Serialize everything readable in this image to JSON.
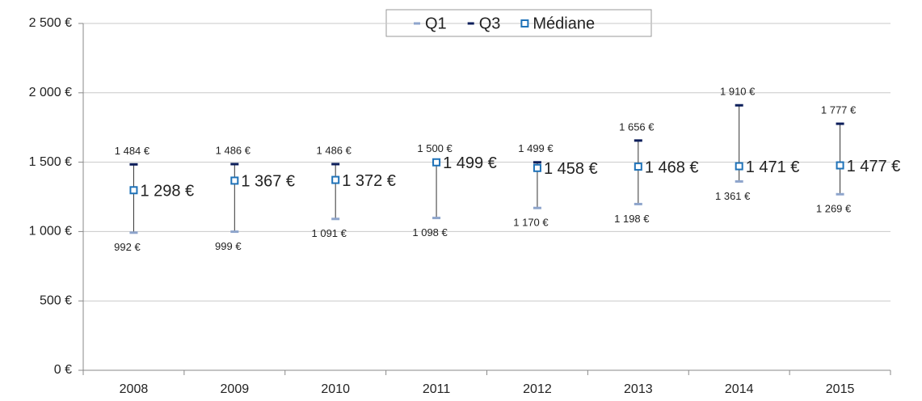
{
  "chart_data": {
    "type": "range",
    "categories": [
      "2008",
      "2009",
      "2010",
      "2011",
      "2012",
      "2013",
      "2014",
      "2015"
    ],
    "series": [
      {
        "name": "Q1",
        "color": "#8ea5cc",
        "values": [
          992,
          999,
          1091,
          1098,
          1170,
          1198,
          1361,
          1269
        ],
        "value_labels": [
          "992 €",
          "999 €",
          "1 091 €",
          "1 098 €",
          "1 170 €",
          "1 198 €",
          "1 361 €",
          "1 269 €"
        ]
      },
      {
        "name": "Q3",
        "color": "#0c1e5a",
        "values": [
          1484,
          1486,
          1486,
          1500,
          1499,
          1656,
          1910,
          1777
        ],
        "value_labels": [
          "1 484 €",
          "1 486 €",
          "1 486 €",
          "1 500 €",
          "1 499 €",
          "1 656 €",
          "1 910 €",
          "1 777 €"
        ]
      },
      {
        "name": "Médiane",
        "color": "#1f72b8",
        "values": [
          1298,
          1367,
          1372,
          1499,
          1458,
          1468,
          1471,
          1477
        ],
        "value_labels": [
          "1 298 €",
          "1 367 €",
          "1 372 €",
          "1 499 €",
          "1 458 €",
          "1 468 €",
          "1 471 €",
          "1 477 €"
        ]
      }
    ],
    "ylim": [
      0,
      2500
    ],
    "yticks": [
      {
        "value": 0,
        "label": "0 €"
      },
      {
        "value": 500,
        "label": "500 €"
      },
      {
        "value": 1000,
        "label": "1 000 €"
      },
      {
        "value": 1500,
        "label": "1 500 €"
      },
      {
        "value": 2000,
        "label": "2 000 €"
      },
      {
        "value": 2500,
        "label": "2 500 €"
      }
    ],
    "grid": true,
    "legend": "top"
  }
}
